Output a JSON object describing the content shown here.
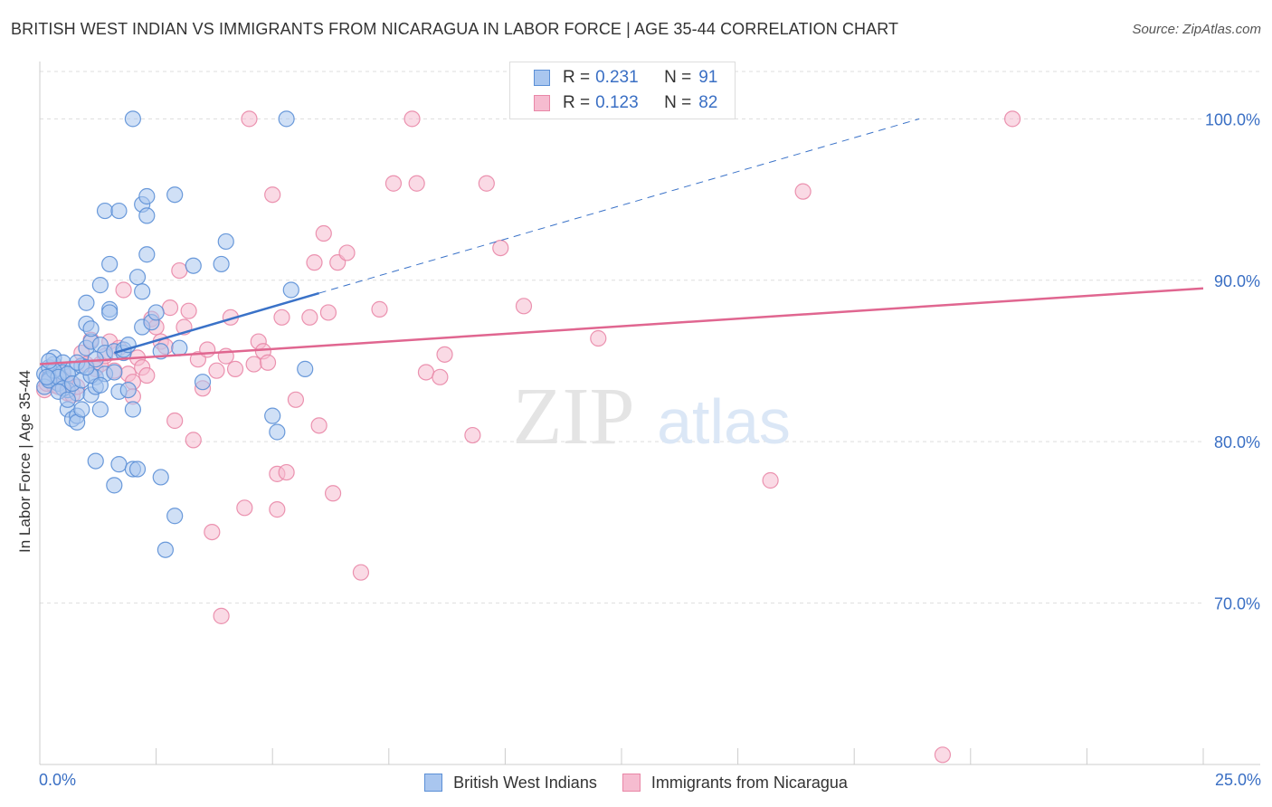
{
  "header": {
    "title": "BRITISH WEST INDIAN VS IMMIGRANTS FROM NICARAGUA IN LABOR FORCE | AGE 35-44 CORRELATION CHART",
    "source": "Source: ZipAtlas.com"
  },
  "watermark": {
    "zip": "ZIP",
    "atlas": "atlas"
  },
  "legend": {
    "series": [
      {
        "r_label": "R =",
        "r_value": "0.231",
        "n_label": "N =",
        "n_value": "91"
      },
      {
        "r_label": "R =",
        "r_value": "0.123",
        "n_label": "N =",
        "n_value": "82"
      }
    ]
  },
  "colors": {
    "blue_fill": "#a9c6ef",
    "blue_stroke": "#5b8fd6",
    "blue_line": "#3a72c8",
    "pink_fill": "#f6bcd0",
    "pink_stroke": "#e987a7",
    "pink_line": "#e06690",
    "tick_text": "#3a6fc4",
    "grid": "#dddddd"
  },
  "chart_data": {
    "type": "scatter",
    "title": "BRITISH WEST INDIAN VS IMMIGRANTS FROM NICARAGUA IN LABOR FORCE | AGE 35-44 CORRELATION CHART",
    "xlabel": "",
    "ylabel": "In Labor Force | Age 35-44",
    "xlim": [
      0,
      25
    ],
    "ylim": [
      60,
      104
    ],
    "x_tick_labels": [
      "0.0%",
      "25.0%"
    ],
    "y_ticks": [
      70,
      80,
      90,
      100
    ],
    "y_tick_labels": [
      "70.0%",
      "80.0%",
      "90.0%",
      "100.0%"
    ],
    "grid": true,
    "legend_position": "top-center",
    "series": [
      {
        "name": "British West Indians",
        "r": 0.231,
        "n": 91,
        "trend": {
          "solid": [
            [
              1.6,
              85.5
            ],
            [
              6.0,
              89.2
            ]
          ],
          "dashed": [
            [
              6.0,
              89.2
            ],
            [
              18.9,
              100.0
            ]
          ]
        },
        "points": [
          [
            0.1,
            84.2
          ],
          [
            0.2,
            84.6
          ],
          [
            0.2,
            83.9
          ],
          [
            0.3,
            84.8
          ],
          [
            0.3,
            85.2
          ],
          [
            0.4,
            84.1
          ],
          [
            0.4,
            83.6
          ],
          [
            0.5,
            84.9
          ],
          [
            0.5,
            84.3
          ],
          [
            0.6,
            83.2
          ],
          [
            0.6,
            82.0
          ],
          [
            0.7,
            81.4
          ],
          [
            0.7,
            84.5
          ],
          [
            0.8,
            81.6
          ],
          [
            0.8,
            83.0
          ],
          [
            0.8,
            81.2
          ],
          [
            0.9,
            82.0
          ],
          [
            0.9,
            84.7
          ],
          [
            1.0,
            85.8
          ],
          [
            1.0,
            88.6
          ],
          [
            1.0,
            87.3
          ],
          [
            1.1,
            86.2
          ],
          [
            1.1,
            82.9
          ],
          [
            1.1,
            87.0
          ],
          [
            1.2,
            84.0
          ],
          [
            1.2,
            78.8
          ],
          [
            1.2,
            83.4
          ],
          [
            1.3,
            82.0
          ],
          [
            1.3,
            89.7
          ],
          [
            1.3,
            86.0
          ],
          [
            1.4,
            94.3
          ],
          [
            1.4,
            85.5
          ],
          [
            1.4,
            84.2
          ],
          [
            1.5,
            91.0
          ],
          [
            1.5,
            88.2
          ],
          [
            1.5,
            88.0
          ],
          [
            1.6,
            85.6
          ],
          [
            1.6,
            84.3
          ],
          [
            1.6,
            77.3
          ],
          [
            1.7,
            83.1
          ],
          [
            1.7,
            78.6
          ],
          [
            1.7,
            94.3
          ],
          [
            1.8,
            85.5
          ],
          [
            1.8,
            85.7
          ],
          [
            1.9,
            86.0
          ],
          [
            1.9,
            83.2
          ],
          [
            2.0,
            82.0
          ],
          [
            2.0,
            78.3
          ],
          [
            2.0,
            100.0
          ],
          [
            2.1,
            78.3
          ],
          [
            2.1,
            90.2
          ],
          [
            2.2,
            94.7
          ],
          [
            2.2,
            89.3
          ],
          [
            2.2,
            87.1
          ],
          [
            2.3,
            95.2
          ],
          [
            2.3,
            91.6
          ],
          [
            2.3,
            94.0
          ],
          [
            2.4,
            87.4
          ],
          [
            2.5,
            88.0
          ],
          [
            2.6,
            77.8
          ],
          [
            2.6,
            85.6
          ],
          [
            2.7,
            73.3
          ],
          [
            2.9,
            75.4
          ],
          [
            2.9,
            95.3
          ],
          [
            3.0,
            85.8
          ],
          [
            3.3,
            90.9
          ],
          [
            3.5,
            83.7
          ],
          [
            3.9,
            91.0
          ],
          [
            4.0,
            92.4
          ],
          [
            5.0,
            81.6
          ],
          [
            5.1,
            80.6
          ],
          [
            5.3,
            100.0
          ],
          [
            5.4,
            89.4
          ],
          [
            5.7,
            84.5
          ],
          [
            0.1,
            83.4
          ],
          [
            0.2,
            83.8
          ],
          [
            0.3,
            84.4
          ],
          [
            0.4,
            84.0
          ],
          [
            0.5,
            83.3
          ],
          [
            0.6,
            84.2
          ],
          [
            0.7,
            83.6
          ],
          [
            0.9,
            83.8
          ],
          [
            1.1,
            84.1
          ],
          [
            1.3,
            83.5
          ],
          [
            0.2,
            85.0
          ],
          [
            0.4,
            83.1
          ],
          [
            0.6,
            82.6
          ],
          [
            0.8,
            84.9
          ],
          [
            1.0,
            84.6
          ],
          [
            1.2,
            85.1
          ],
          [
            0.15,
            84.0
          ]
        ]
      },
      {
        "name": "Immigrants from Nicaragua",
        "r": 0.123,
        "n": 82,
        "trend": {
          "solid": [
            [
              0.0,
              84.8
            ],
            [
              25.0,
              89.5
            ]
          ]
        },
        "points": [
          [
            0.1,
            83.2
          ],
          [
            0.2,
            84.0
          ],
          [
            0.3,
            83.5
          ],
          [
            0.4,
            83.4
          ],
          [
            0.5,
            84.2
          ],
          [
            0.6,
            83.0
          ],
          [
            0.7,
            82.9
          ],
          [
            0.8,
            83.4
          ],
          [
            0.9,
            85.5
          ],
          [
            1.0,
            84.8
          ],
          [
            1.1,
            86.3
          ],
          [
            1.2,
            84.5
          ],
          [
            1.3,
            84.8
          ],
          [
            1.4,
            85.3
          ],
          [
            1.5,
            86.2
          ],
          [
            1.6,
            84.4
          ],
          [
            1.7,
            85.8
          ],
          [
            1.8,
            89.4
          ],
          [
            1.9,
            84.2
          ],
          [
            2.0,
            83.7
          ],
          [
            2.0,
            82.8
          ],
          [
            2.1,
            85.2
          ],
          [
            2.2,
            84.6
          ],
          [
            2.3,
            84.1
          ],
          [
            2.4,
            87.6
          ],
          [
            2.5,
            87.1
          ],
          [
            2.6,
            86.2
          ],
          [
            2.7,
            85.9
          ],
          [
            2.8,
            88.3
          ],
          [
            2.9,
            81.3
          ],
          [
            3.0,
            90.6
          ],
          [
            3.1,
            87.1
          ],
          [
            3.2,
            88.1
          ],
          [
            3.3,
            80.1
          ],
          [
            3.4,
            85.1
          ],
          [
            3.5,
            83.3
          ],
          [
            3.6,
            85.7
          ],
          [
            3.7,
            74.4
          ],
          [
            3.8,
            84.4
          ],
          [
            3.9,
            69.2
          ],
          [
            4.0,
            85.3
          ],
          [
            4.1,
            87.7
          ],
          [
            4.2,
            84.5
          ],
          [
            4.4,
            75.9
          ],
          [
            4.5,
            100.0
          ],
          [
            4.6,
            84.8
          ],
          [
            4.7,
            86.2
          ],
          [
            4.8,
            85.6
          ],
          [
            4.9,
            84.9
          ],
          [
            5.0,
            95.3
          ],
          [
            5.1,
            78.0
          ],
          [
            5.1,
            75.8
          ],
          [
            5.2,
            87.7
          ],
          [
            5.3,
            78.1
          ],
          [
            5.5,
            82.6
          ],
          [
            5.8,
            87.7
          ],
          [
            5.9,
            91.1
          ],
          [
            6.0,
            81.0
          ],
          [
            6.1,
            92.9
          ],
          [
            6.2,
            88.0
          ],
          [
            6.3,
            76.8
          ],
          [
            6.4,
            91.1
          ],
          [
            6.6,
            91.7
          ],
          [
            6.9,
            71.9
          ],
          [
            7.3,
            88.2
          ],
          [
            7.6,
            96.0
          ],
          [
            8.0,
            100.0
          ],
          [
            8.1,
            96.0
          ],
          [
            8.3,
            84.3
          ],
          [
            8.6,
            84.0
          ],
          [
            8.7,
            85.4
          ],
          [
            9.3,
            80.4
          ],
          [
            9.6,
            96.0
          ],
          [
            9.9,
            92.0
          ],
          [
            10.4,
            88.4
          ],
          [
            12.0,
            86.4
          ],
          [
            15.7,
            77.6
          ],
          [
            16.4,
            95.5
          ],
          [
            19.4,
            60.6
          ],
          [
            20.9,
            100.0
          ],
          [
            0.15,
            83.6
          ],
          [
            0.55,
            83.8
          ]
        ]
      }
    ]
  }
}
